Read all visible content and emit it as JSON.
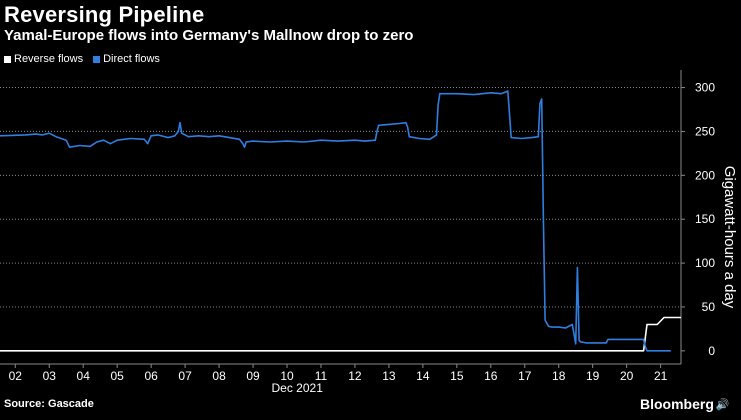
{
  "header": {
    "title": "Reversing Pipeline",
    "subtitle": "Yamal-Europe flows into Germany's Mallnow drop to zero"
  },
  "legend": {
    "items": [
      {
        "label": "Reverse flows",
        "color": "#ffffff"
      },
      {
        "label": "Direct flows",
        "color": "#2f7fe0"
      }
    ]
  },
  "footer": {
    "source": "Source: Gascade",
    "brand": "Bloomberg",
    "brand_icon": "speaker-icon"
  },
  "colors": {
    "background": "#000000",
    "grid": "#8a8a8a",
    "text": "#ffffff"
  },
  "chart_data": {
    "type": "line",
    "title": "Reversing Pipeline",
    "subtitle": "Yamal-Europe flows into Germany's Mallnow drop to zero",
    "xlabel": "Dec 2021",
    "ylabel": "Gigawatt-hours a day",
    "xlim": [
      1.55,
      21.6
    ],
    "ylim": [
      -15,
      320
    ],
    "yticks": [
      0,
      50,
      100,
      150,
      200,
      250,
      300
    ],
    "xticks": [
      "02",
      "03",
      "04",
      "05",
      "06",
      "07",
      "08",
      "09",
      "10",
      "11",
      "12",
      "13",
      "14",
      "15",
      "16",
      "17",
      "18",
      "19",
      "20",
      "21"
    ],
    "xtick_values": [
      2,
      3,
      4,
      5,
      6,
      7,
      8,
      9,
      10,
      11,
      12,
      13,
      14,
      15,
      16,
      17,
      18,
      19,
      20,
      21
    ],
    "grid": true,
    "legend_position": "top-left",
    "series": [
      {
        "name": "Direct flows",
        "color": "#2f7fe0",
        "x": [
          1.55,
          2.3,
          2.6,
          2.8,
          3.0,
          3.2,
          3.5,
          3.6,
          3.9,
          4.2,
          4.4,
          4.6,
          4.8,
          5.0,
          5.4,
          5.8,
          5.9,
          6.0,
          6.2,
          6.5,
          6.7,
          6.8,
          6.85,
          6.9,
          7.1,
          7.4,
          7.7,
          8.0,
          8.3,
          8.6,
          8.7,
          8.75,
          8.8,
          9.0,
          9.5,
          10.0,
          10.5,
          11.0,
          11.5,
          12.0,
          12.3,
          12.6,
          12.65,
          12.7,
          13.0,
          13.3,
          13.5,
          13.55,
          13.6,
          13.9,
          14.2,
          14.4,
          14.45,
          14.5,
          15.0,
          15.5,
          16.0,
          16.3,
          16.5,
          16.55,
          16.6,
          16.9,
          17.2,
          17.4,
          17.45,
          17.5,
          17.55,
          17.6,
          17.7,
          17.8,
          18.0,
          18.2,
          18.4,
          18.5,
          18.55,
          18.6,
          18.65,
          18.7,
          18.8,
          19.0,
          19.2,
          19.4,
          19.45,
          19.5,
          19.7,
          20.0,
          20.3,
          20.5,
          20.55,
          20.6,
          21.0,
          21.3
        ],
        "values": [
          245,
          246,
          247,
          246,
          248,
          244,
          240,
          232,
          234,
          233,
          238,
          240,
          236,
          240,
          242,
          241,
          236,
          245,
          246,
          243,
          245,
          250,
          260,
          248,
          244,
          245,
          244,
          245,
          243,
          241,
          236,
          232,
          238,
          239,
          238,
          239,
          238,
          240,
          239,
          240,
          239,
          240,
          250,
          257,
          258,
          259,
          260,
          255,
          244,
          242,
          241,
          246,
          280,
          293,
          293,
          292,
          294,
          293,
          296,
          270,
          243,
          242,
          243,
          244,
          282,
          287,
          150,
          35,
          28,
          27,
          27,
          26,
          30,
          8,
          95,
          12,
          10,
          10,
          9,
          9,
          9,
          9,
          13,
          13,
          13,
          13,
          13,
          13,
          5,
          0,
          0,
          0
        ]
      },
      {
        "name": "Reverse flows",
        "color": "#ffffff",
        "x": [
          1.55,
          20.5,
          20.55,
          20.6,
          20.9,
          21.0,
          21.1,
          21.6
        ],
        "values": [
          0,
          0,
          15,
          30,
          30,
          34,
          38,
          38
        ]
      }
    ]
  }
}
